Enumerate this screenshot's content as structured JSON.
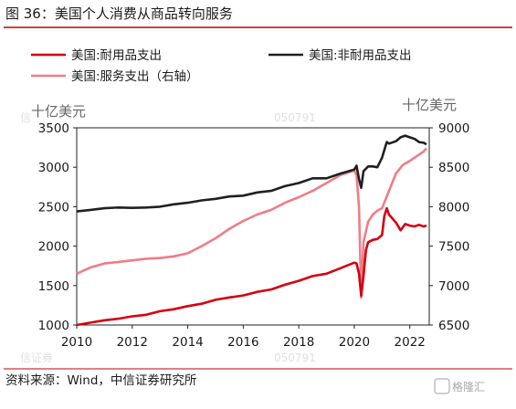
{
  "header": {
    "title": "图 36：美国个人消费从商品转向服务"
  },
  "footer": {
    "source": "资料来源：Wind，中信证券研究所"
  },
  "watermark": {
    "logo_text": "格隆汇"
  },
  "colors": {
    "accent": "#c00000",
    "durable": "#d40010",
    "nondurable": "#231f20",
    "services": "#f07c86",
    "rule": "#c00000"
  },
  "chart_data": {
    "type": "line",
    "left_axis": {
      "unit": "十亿美元",
      "ylim": [
        1000,
        3500
      ],
      "ticks": [
        1000,
        1500,
        2000,
        2500,
        3000,
        3500
      ]
    },
    "right_axis": {
      "unit": "十亿美元",
      "ylim": [
        6500,
        9000
      ],
      "ticks": [
        6500,
        7000,
        7500,
        8000,
        8500,
        9000
      ]
    },
    "x_axis": {
      "xlim": [
        2010.0,
        2022.7
      ],
      "ticks": [
        2010,
        2012,
        2014,
        2016,
        2018,
        2020,
        2022
      ]
    },
    "legend": {
      "placement": "top-left, two columns"
    },
    "series": [
      {
        "name": "美国:耐用品支出",
        "axis": "left",
        "color": "#d40010",
        "points": [
          [
            2010.0,
            1000
          ],
          [
            2010.5,
            1030
          ],
          [
            2011.0,
            1060
          ],
          [
            2011.5,
            1080
          ],
          [
            2012.0,
            1110
          ],
          [
            2012.5,
            1130
          ],
          [
            2013.0,
            1175
          ],
          [
            2013.5,
            1200
          ],
          [
            2014.0,
            1240
          ],
          [
            2014.5,
            1270
          ],
          [
            2015.0,
            1320
          ],
          [
            2015.5,
            1350
          ],
          [
            2016.0,
            1375
          ],
          [
            2016.5,
            1420
          ],
          [
            2017.0,
            1450
          ],
          [
            2017.5,
            1510
          ],
          [
            2018.0,
            1560
          ],
          [
            2018.5,
            1620
          ],
          [
            2019.0,
            1650
          ],
          [
            2019.5,
            1720
          ],
          [
            2020.0,
            1790
          ],
          [
            2020.08,
            1780
          ],
          [
            2020.17,
            1650
          ],
          [
            2020.25,
            1370
          ],
          [
            2020.33,
            1620
          ],
          [
            2020.42,
            1950
          ],
          [
            2020.5,
            2050
          ],
          [
            2020.67,
            2080
          ],
          [
            2020.83,
            2090
          ],
          [
            2021.0,
            2140
          ],
          [
            2021.08,
            2380
          ],
          [
            2021.17,
            2480
          ],
          [
            2021.25,
            2400
          ],
          [
            2021.5,
            2300
          ],
          [
            2021.67,
            2200
          ],
          [
            2021.83,
            2280
          ],
          [
            2022.0,
            2260
          ],
          [
            2022.17,
            2250
          ],
          [
            2022.33,
            2270
          ],
          [
            2022.5,
            2250
          ],
          [
            2022.6,
            2260
          ]
        ]
      },
      {
        "name": "美国:非耐用品支出",
        "axis": "left",
        "color": "#231f20",
        "points": [
          [
            2010.0,
            2440
          ],
          [
            2010.5,
            2460
          ],
          [
            2011.0,
            2480
          ],
          [
            2011.5,
            2490
          ],
          [
            2012.0,
            2485
          ],
          [
            2012.5,
            2490
          ],
          [
            2013.0,
            2500
          ],
          [
            2013.5,
            2530
          ],
          [
            2014.0,
            2550
          ],
          [
            2014.5,
            2580
          ],
          [
            2015.0,
            2600
          ],
          [
            2015.5,
            2630
          ],
          [
            2016.0,
            2640
          ],
          [
            2016.5,
            2680
          ],
          [
            2017.0,
            2700
          ],
          [
            2017.5,
            2760
          ],
          [
            2018.0,
            2800
          ],
          [
            2018.5,
            2860
          ],
          [
            2019.0,
            2860
          ],
          [
            2019.5,
            2920
          ],
          [
            2020.0,
            2970
          ],
          [
            2020.08,
            3020
          ],
          [
            2020.17,
            2850
          ],
          [
            2020.25,
            2740
          ],
          [
            2020.33,
            2950
          ],
          [
            2020.5,
            3010
          ],
          [
            2020.67,
            3010
          ],
          [
            2020.83,
            3000
          ],
          [
            2021.0,
            3120
          ],
          [
            2021.17,
            3320
          ],
          [
            2021.25,
            3300
          ],
          [
            2021.5,
            3330
          ],
          [
            2021.67,
            3380
          ],
          [
            2021.83,
            3400
          ],
          [
            2022.0,
            3380
          ],
          [
            2022.17,
            3360
          ],
          [
            2022.33,
            3320
          ],
          [
            2022.5,
            3310
          ],
          [
            2022.6,
            3290
          ]
        ]
      },
      {
        "name": "美国:服务支出（右轴）",
        "axis": "right",
        "color": "#f07c86",
        "points": [
          [
            2010.0,
            7150
          ],
          [
            2010.5,
            7230
          ],
          [
            2011.0,
            7280
          ],
          [
            2011.5,
            7300
          ],
          [
            2012.0,
            7320
          ],
          [
            2012.5,
            7340
          ],
          [
            2013.0,
            7350
          ],
          [
            2013.5,
            7370
          ],
          [
            2014.0,
            7410
          ],
          [
            2014.5,
            7500
          ],
          [
            2015.0,
            7600
          ],
          [
            2015.5,
            7720
          ],
          [
            2016.0,
            7820
          ],
          [
            2016.5,
            7900
          ],
          [
            2017.0,
            7960
          ],
          [
            2017.5,
            8050
          ],
          [
            2018.0,
            8120
          ],
          [
            2018.5,
            8200
          ],
          [
            2019.0,
            8300
          ],
          [
            2019.5,
            8400
          ],
          [
            2020.0,
            8460
          ],
          [
            2020.08,
            8400
          ],
          [
            2020.17,
            8000
          ],
          [
            2020.25,
            6850
          ],
          [
            2020.33,
            7550
          ],
          [
            2020.5,
            7810
          ],
          [
            2020.67,
            7900
          ],
          [
            2020.83,
            7950
          ],
          [
            2021.0,
            7980
          ],
          [
            2021.25,
            8200
          ],
          [
            2021.5,
            8420
          ],
          [
            2021.75,
            8530
          ],
          [
            2022.0,
            8580
          ],
          [
            2022.25,
            8640
          ],
          [
            2022.5,
            8700
          ],
          [
            2022.6,
            8740
          ]
        ]
      }
    ]
  }
}
